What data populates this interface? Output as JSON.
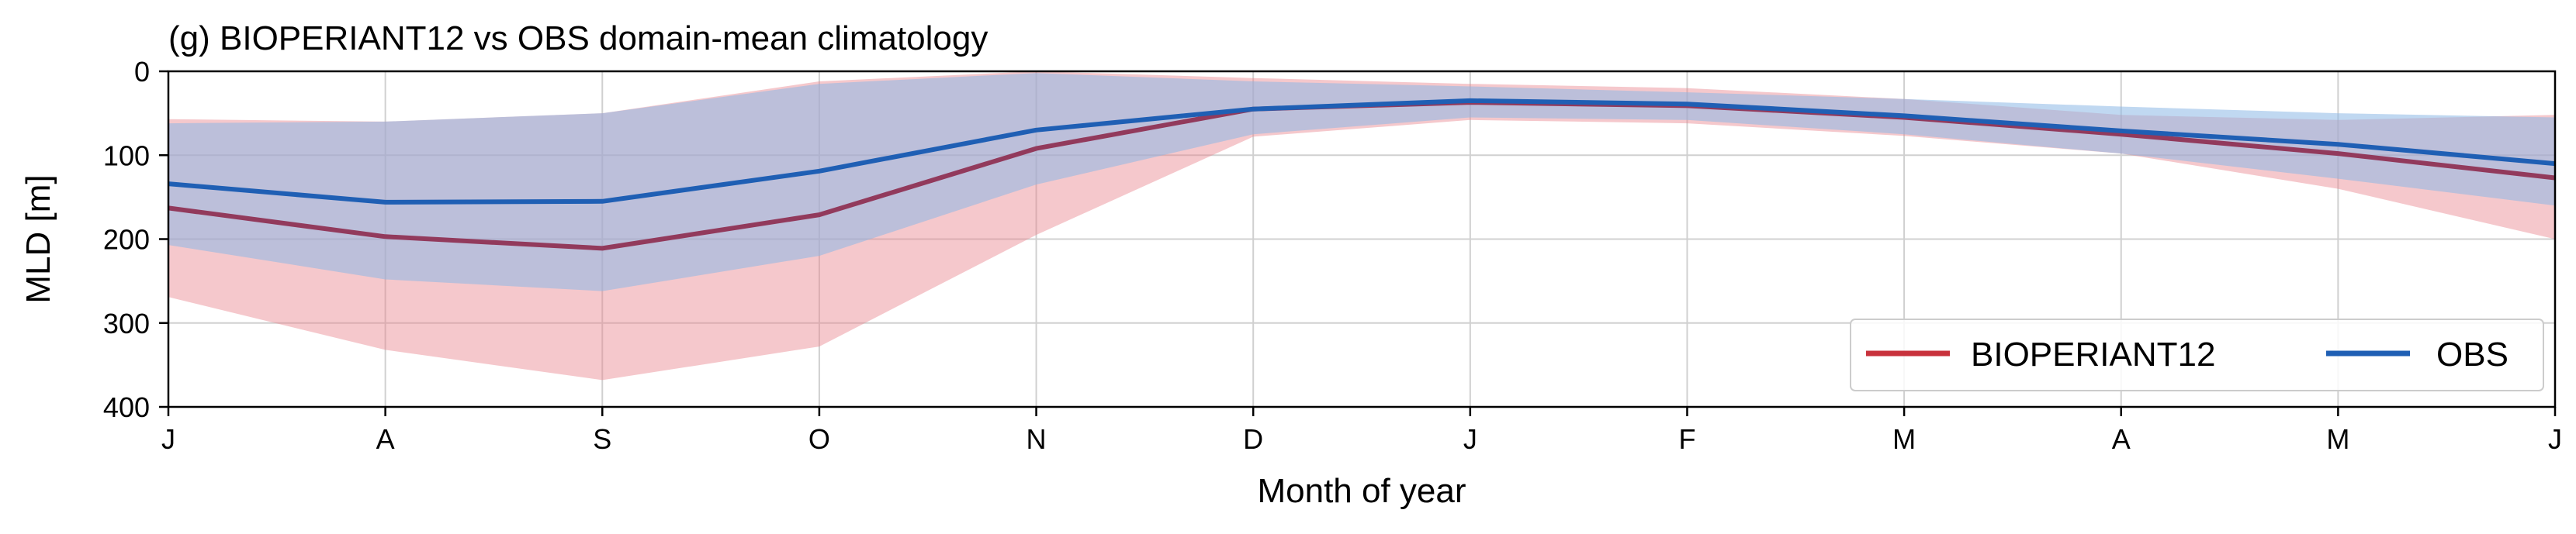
{
  "chart_data": {
    "type": "line",
    "title": "(g) BIOPERIANT12 vs OBS domain-mean climatology",
    "xlabel": "Month of year",
    "ylabel": "MLD [m]",
    "categories": [
      "J",
      "A",
      "S",
      "O",
      "N",
      "D",
      "J",
      "F",
      "M",
      "A",
      "M",
      "J"
    ],
    "ylim": [
      400,
      0
    ],
    "yticks": [
      0,
      100,
      200,
      300,
      400
    ],
    "grid": true,
    "legend_position": "bottom-right",
    "series": [
      {
        "name": "BIOPERIANT12",
        "color": "#c8323c",
        "band_color": "#e8868e",
        "mean": [
          163,
          197,
          211,
          171,
          92,
          45,
          37,
          41,
          55,
          75,
          98,
          127
        ],
        "lower": [
          57,
          60,
          50,
          12,
          0,
          8,
          15,
          20,
          33,
          52,
          58,
          52
        ],
        "upper": [
          269,
          332,
          368,
          328,
          195,
          78,
          58,
          62,
          77,
          98,
          140,
          200
        ]
      },
      {
        "name": "OBS",
        "color": "#1f5fb4",
        "band_color": "#8cb8e6",
        "mean": [
          134,
          156,
          155,
          119,
          70,
          45,
          35,
          39,
          53,
          71,
          87,
          110
        ],
        "lower": [
          62,
          60,
          50,
          15,
          2,
          12,
          18,
          25,
          33,
          42,
          50,
          55
        ],
        "upper": [
          207,
          248,
          262,
          220,
          135,
          75,
          55,
          58,
          75,
          98,
          128,
          160
        ]
      }
    ]
  }
}
